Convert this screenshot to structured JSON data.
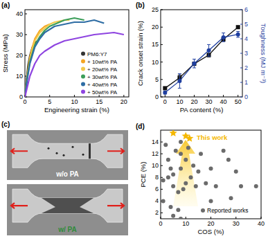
{
  "chart_data": [
    {
      "type": "line",
      "title": "(a)",
      "x_label": "Engineering strain (%)",
      "y_label": "Stress (MPa)",
      "xlim": [
        0,
        21
      ],
      "ylim": [
        0,
        42
      ],
      "xticks": [
        0,
        5,
        10,
        15,
        20
      ],
      "yticks": [
        0,
        10,
        20,
        30,
        40
      ],
      "legend": "lower right",
      "series": [
        {
          "name": "PM6:Y7",
          "color": "#333333",
          "x": [
            0,
            0.3,
            0.6,
            1,
            1.5,
            2,
            2.5
          ],
          "values": [
            0,
            8,
            15,
            20,
            24,
            26,
            27
          ]
        },
        {
          "name": "+ 10wt% PA",
          "color": "#f5a623",
          "x": [
            0,
            0.5,
            1,
            1.5,
            2,
            3,
            4,
            5
          ],
          "values": [
            0,
            11,
            19,
            24,
            28,
            32,
            34,
            35
          ]
        },
        {
          "name": "+ 20wt% PA",
          "color": "#f2c94c",
          "x": [
            0,
            0.5,
            1,
            1.5,
            2,
            3,
            4,
            5,
            6,
            7,
            8,
            9
          ],
          "values": [
            0,
            10,
            18,
            23,
            27,
            31,
            33,
            35,
            36,
            36.5,
            37,
            37
          ]
        },
        {
          "name": "+ 30wt% PA",
          "color": "#3c9e5a",
          "x": [
            0,
            0.5,
            1,
            2,
            3,
            4,
            5,
            6,
            8,
            10,
            12
          ],
          "values": [
            0,
            10,
            17,
            25,
            29,
            32,
            34,
            35,
            37,
            38,
            37
          ]
        },
        {
          "name": "+ 40wt% PA",
          "color": "#2e6da4",
          "x": [
            0,
            0.5,
            1,
            2,
            3,
            4,
            6,
            8,
            10,
            12,
            14,
            16
          ],
          "values": [
            0,
            9,
            16,
            24,
            28,
            31,
            34,
            35,
            36,
            36,
            37,
            35.5
          ]
        },
        {
          "name": "+ 50wt% PA",
          "color": "#8e44e0",
          "x": [
            0,
            0.5,
            1,
            2,
            3,
            4,
            6,
            8,
            10,
            12,
            14,
            16,
            18,
            20
          ],
          "values": [
            0,
            5,
            10,
            16,
            20,
            22,
            25,
            27,
            28,
            29,
            30,
            30.5,
            31,
            30
          ]
        }
      ]
    },
    {
      "type": "line",
      "title": "(b)",
      "x_label": "PA content (%)",
      "y_label": "Crack onset strain (%)",
      "y2_label": "Toughness (MJ m⁻³)",
      "x": [
        0,
        10,
        20,
        30,
        40,
        50
      ],
      "xlim": [
        -3,
        53
      ],
      "ylim": [
        0,
        25
      ],
      "y2lim": [
        0,
        6
      ],
      "xticks": [
        0,
        10,
        20,
        30,
        40,
        50
      ],
      "yticks": [
        0,
        5,
        10,
        15,
        20,
        25
      ],
      "y2ticks": [
        0,
        1,
        2,
        3,
        4,
        5,
        6
      ],
      "series": [
        {
          "color": "#111111",
          "marker": "square",
          "values": [
            2.5,
            5.5,
            9.5,
            12,
            16.5,
            20
          ],
          "errors": [
            0.3,
            0.8,
            0.5,
            0.5,
            0.5,
            0.3
          ]
        },
        {
          "color": "#1f3fa0",
          "marker": "circle",
          "axis": "y2",
          "values": [
            0.3,
            1.1,
            2.3,
            3.2,
            4.1,
            4.3
          ],
          "errors": [
            0.1,
            0.5,
            0.3,
            0.4,
            0.3,
            0.2
          ]
        }
      ]
    },
    {
      "type": "scatter",
      "title": "(d)",
      "x_label": "COS (%)",
      "y_label": "PCE (%)",
      "xlim": [
        0,
        40
      ],
      "ylim": [
        1,
        16
      ],
      "xticks": [
        0,
        10,
        20,
        30,
        40
      ],
      "yticks": [
        2,
        4,
        6,
        8,
        10,
        12,
        14
      ],
      "series": [
        {
          "name": "Reported works",
          "color": "#6b6b6b",
          "marker": "circle",
          "x": [
            1,
            2,
            3,
            3,
            4,
            4,
            5,
            5,
            6,
            7,
            7,
            8,
            8,
            8,
            9,
            10,
            10,
            11,
            12,
            13,
            14,
            15,
            16,
            18,
            20,
            20,
            22,
            25,
            27,
            28,
            30,
            32,
            38,
            5,
            1,
            8
          ],
          "values": [
            7.5,
            13.5,
            11,
            8,
            3,
            9.5,
            8.5,
            6.5,
            12.5,
            5.5,
            2.5,
            14,
            12,
            9.5,
            6,
            11,
            7,
            13,
            8,
            10,
            6.5,
            9,
            12,
            7,
            4,
            9.5,
            6.5,
            12.5,
            11,
            4.5,
            9,
            6.5,
            6.5,
            1.5,
            4,
            1
          ]
        },
        {
          "name": "This work",
          "color": "#f5b800",
          "marker": "star",
          "x": [
            5,
            10,
            11.5
          ],
          "values": [
            15.5,
            15,
            14.6
          ]
        }
      ]
    }
  ],
  "images": {
    "title": "(c)",
    "panels": [
      {
        "label": "w/o PA"
      },
      {
        "label": "w/ PA"
      }
    ]
  }
}
